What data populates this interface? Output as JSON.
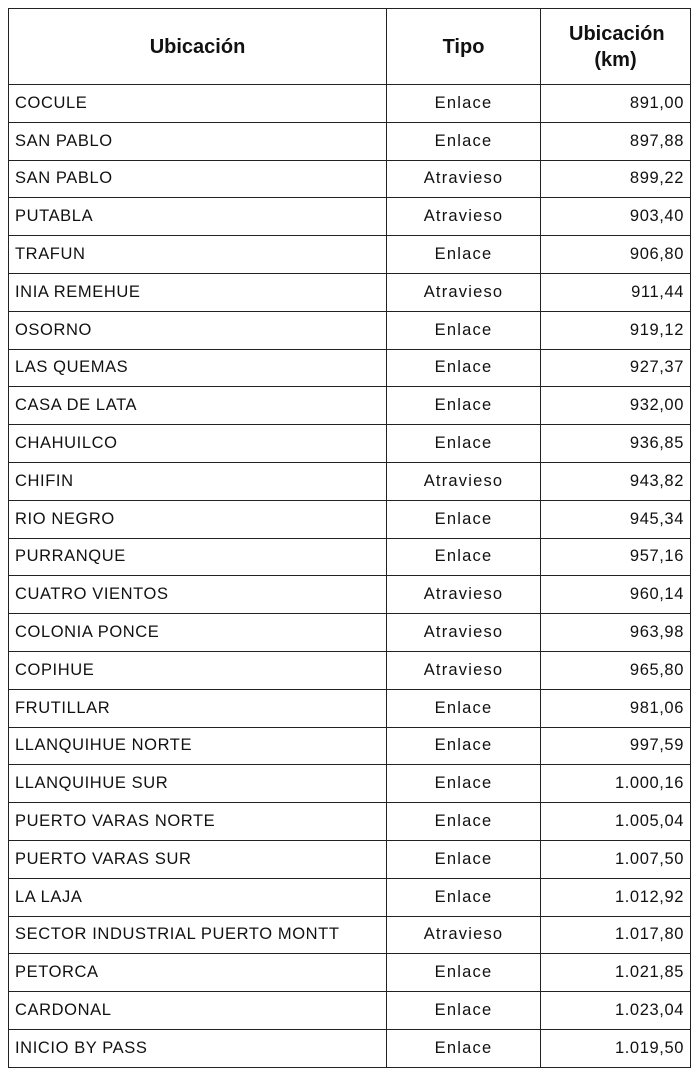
{
  "table": {
    "headers": [
      "Ubicación",
      "Tipo",
      "Ubicación (km)"
    ],
    "rows": [
      [
        "COCULE",
        "Enlace",
        "891,00"
      ],
      [
        "SAN PABLO",
        "Enlace",
        "897,88"
      ],
      [
        "SAN PABLO",
        "Atravieso",
        "899,22"
      ],
      [
        "PUTABLA",
        "Atravieso",
        "903,40"
      ],
      [
        "TRAFUN",
        "Enlace",
        "906,80"
      ],
      [
        "INIA REMEHUE",
        "Atravieso",
        "911,44"
      ],
      [
        "OSORNO",
        "Enlace",
        "919,12"
      ],
      [
        "LAS QUEMAS",
        "Enlace",
        "927,37"
      ],
      [
        "CASA DE LATA",
        "Enlace",
        "932,00"
      ],
      [
        "CHAHUILCO",
        "Enlace",
        "936,85"
      ],
      [
        "CHIFIN",
        "Atravieso",
        "943,82"
      ],
      [
        "RIO NEGRO",
        "Enlace",
        "945,34"
      ],
      [
        "PURRANQUE",
        "Enlace",
        "957,16"
      ],
      [
        "CUATRO VIENTOS",
        "Atravieso",
        "960,14"
      ],
      [
        "COLONIA PONCE",
        "Atravieso",
        "963,98"
      ],
      [
        "COPIHUE",
        "Atravieso",
        "965,80"
      ],
      [
        "FRUTILLAR",
        "Enlace",
        "981,06"
      ],
      [
        "LLANQUIHUE NORTE",
        "Enlace",
        "997,59"
      ],
      [
        "LLANQUIHUE SUR",
        "Enlace",
        "1.000,16"
      ],
      [
        "PUERTO VARAS NORTE",
        "Enlace",
        "1.005,04"
      ],
      [
        "PUERTO VARAS SUR",
        "Enlace",
        "1.007,50"
      ],
      [
        "LA LAJA",
        "Enlace",
        "1.012,92"
      ],
      [
        "SECTOR INDUSTRIAL PUERTO MONTT",
        "Atravieso",
        "1.017,80"
      ],
      [
        "PETORCA",
        "Enlace",
        "1.021,85"
      ],
      [
        "CARDONAL",
        "Enlace",
        "1.023,04"
      ],
      [
        "INICIO BY PASS",
        "Enlace",
        "1.019,50"
      ]
    ]
  }
}
